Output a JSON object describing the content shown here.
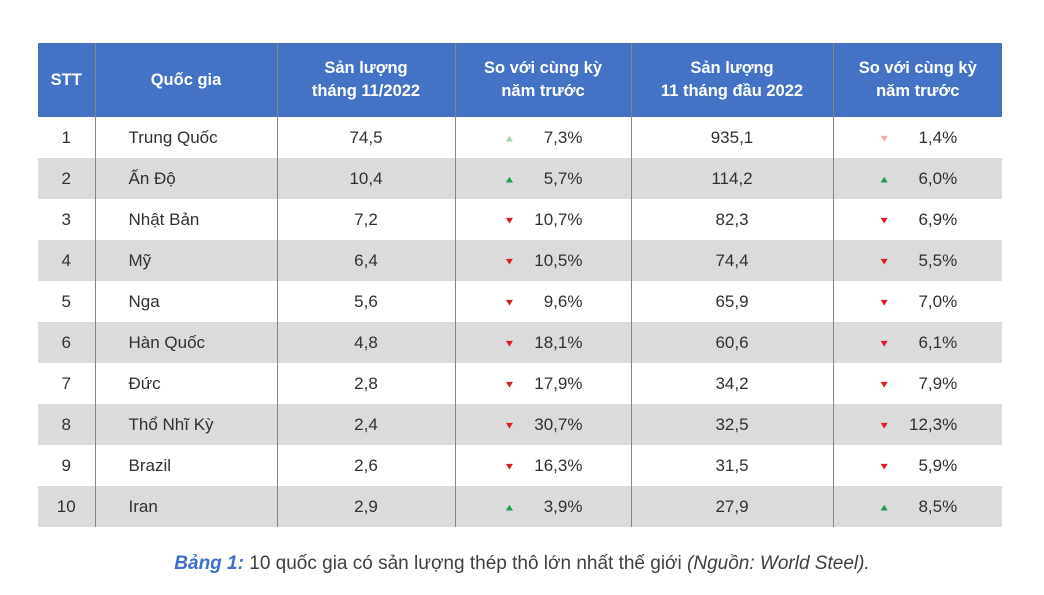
{
  "colors": {
    "header_bg": "#4472C4",
    "header_text": "#FFFFFF",
    "row_alt_bg": "#DBDBDB",
    "border": "#858585",
    "body_text": "#303030",
    "up": "#1F9D4D",
    "down": "#D91F26",
    "up_pale": "#A8D5AB",
    "down_pale": "#F2A6AC",
    "caption_accent": "#3D6EC9",
    "caption_text": "#3F3F3F"
  },
  "table": {
    "headers": [
      "STT",
      "Quốc gia",
      "Sản lượng\ntháng 11/2022",
      "So với cùng kỳ\nnăm trước",
      "Sản lượng\n11 tháng đầu 2022",
      "So với cùng kỳ\nnăm trước"
    ],
    "rows": [
      {
        "stt": "1",
        "country": "Trung Quốc",
        "prod_month": "74,5",
        "change_month": {
          "dir": "up",
          "tone": "pale",
          "value": "7,3%"
        },
        "prod_ytd": "935,1",
        "change_ytd": {
          "dir": "down",
          "tone": "pale",
          "value": "1,4%"
        }
      },
      {
        "stt": "2",
        "country": "Ấn Độ",
        "prod_month": "10,4",
        "change_month": {
          "dir": "up",
          "tone": "vivid",
          "value": "5,7%"
        },
        "prod_ytd": "114,2",
        "change_ytd": {
          "dir": "up",
          "tone": "vivid",
          "value": "6,0%"
        }
      },
      {
        "stt": "3",
        "country": "Nhật Bản",
        "prod_month": "7,2",
        "change_month": {
          "dir": "down",
          "tone": "vivid",
          "value": "10,7%"
        },
        "prod_ytd": "82,3",
        "change_ytd": {
          "dir": "down",
          "tone": "vivid",
          "value": "6,9%"
        }
      },
      {
        "stt": "4",
        "country": "Mỹ",
        "prod_month": "6,4",
        "change_month": {
          "dir": "down",
          "tone": "vivid",
          "value": "10,5%"
        },
        "prod_ytd": "74,4",
        "change_ytd": {
          "dir": "down",
          "tone": "vivid",
          "value": "5,5%"
        }
      },
      {
        "stt": "5",
        "country": "Nga",
        "prod_month": "5,6",
        "change_month": {
          "dir": "down",
          "tone": "vivid",
          "value": "9,6%"
        },
        "prod_ytd": "65,9",
        "change_ytd": {
          "dir": "down",
          "tone": "vivid",
          "value": "7,0%"
        }
      },
      {
        "stt": "6",
        "country": "Hàn Quốc",
        "prod_month": "4,8",
        "change_month": {
          "dir": "down",
          "tone": "vivid",
          "value": "18,1%"
        },
        "prod_ytd": "60,6",
        "change_ytd": {
          "dir": "down",
          "tone": "vivid",
          "value": "6,1%"
        }
      },
      {
        "stt": "7",
        "country": "Đức",
        "prod_month": "2,8",
        "change_month": {
          "dir": "down",
          "tone": "vivid",
          "value": "17,9%"
        },
        "prod_ytd": "34,2",
        "change_ytd": {
          "dir": "down",
          "tone": "vivid",
          "value": "7,9%"
        }
      },
      {
        "stt": "8",
        "country": "Thổ Nhĩ Kỳ",
        "prod_month": "2,4",
        "change_month": {
          "dir": "down",
          "tone": "vivid",
          "value": "30,7%"
        },
        "prod_ytd": "32,5",
        "change_ytd": {
          "dir": "down",
          "tone": "vivid",
          "value": "12,3%"
        }
      },
      {
        "stt": "9",
        "country": "Brazil",
        "prod_month": "2,6",
        "change_month": {
          "dir": "down",
          "tone": "vivid",
          "value": "16,3%"
        },
        "prod_ytd": "31,5",
        "change_ytd": {
          "dir": "down",
          "tone": "vivid",
          "value": "5,9%"
        }
      },
      {
        "stt": "10",
        "country": "Iran",
        "prod_month": "2,9",
        "change_month": {
          "dir": "up",
          "tone": "vivid",
          "value": "3,9%"
        },
        "prod_ytd": "27,9",
        "change_ytd": {
          "dir": "up",
          "tone": "vivid",
          "value": "8,5%"
        }
      }
    ]
  },
  "caption": {
    "label": "Bảng 1:",
    "text": " 10 quốc gia có sản lượng thép thô lớn nhất thế giới ",
    "source": "(Nguồn: World Steel)."
  }
}
